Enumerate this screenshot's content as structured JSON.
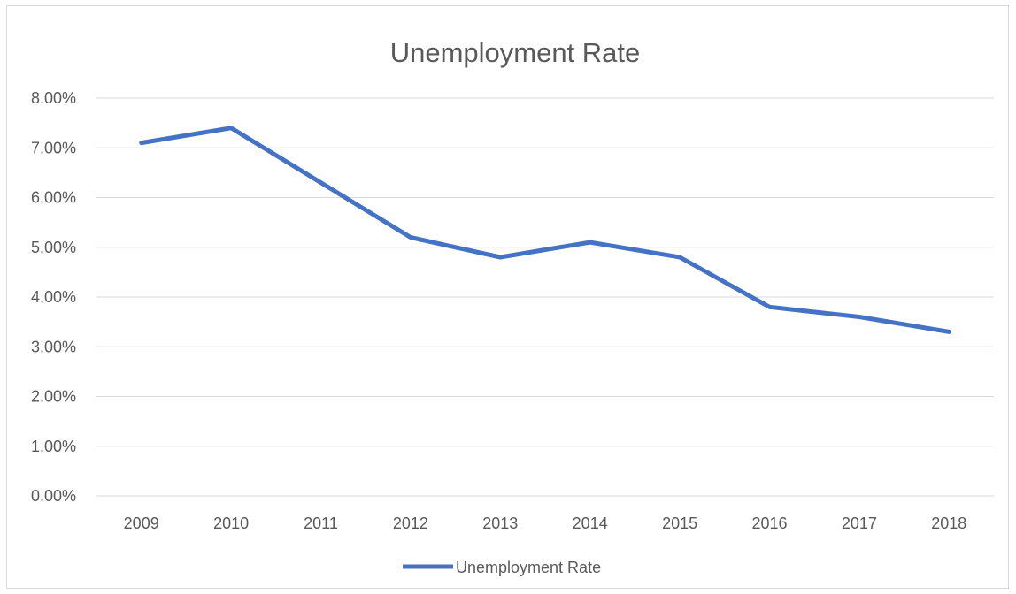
{
  "chart_data": {
    "type": "line",
    "title": "Unemployment Rate",
    "xlabel": "",
    "ylabel": "",
    "categories": [
      "2009",
      "2010",
      "2011",
      "2012",
      "2013",
      "2014",
      "2015",
      "2016",
      "2017",
      "2018"
    ],
    "series": [
      {
        "name": "Unemployment Rate",
        "values": [
          7.1,
          7.4,
          6.3,
          5.2,
          4.8,
          5.1,
          4.8,
          3.8,
          3.6,
          3.3
        ],
        "color": "#4472c4"
      }
    ],
    "ylim": [
      0,
      8
    ],
    "y_ticks": [
      "0.00%",
      "1.00%",
      "2.00%",
      "3.00%",
      "4.00%",
      "5.00%",
      "6.00%",
      "7.00%",
      "8.00%"
    ],
    "grid": true,
    "legend_position": "bottom"
  }
}
